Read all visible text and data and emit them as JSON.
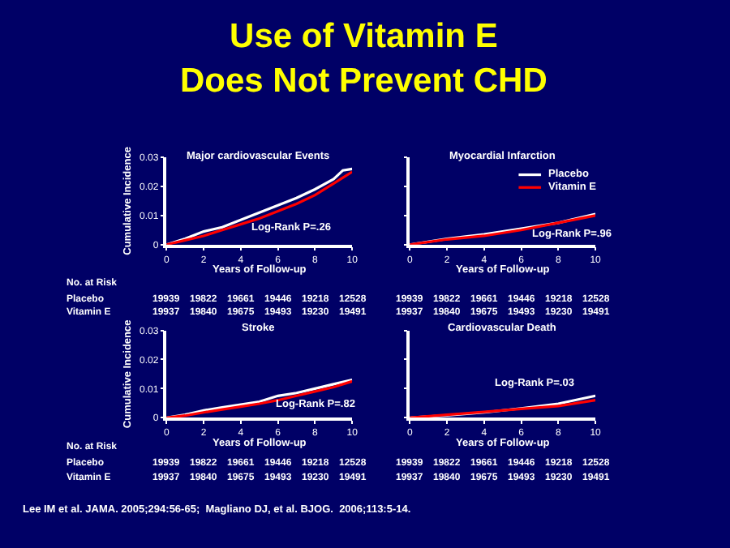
{
  "chart_data": [
    {
      "type": "other",
      "title": "Use of Vitamin E\nDoes Not Prevent CHD",
      "annotations": [
        "Lee IM et al. JAMA. 2005;294:56-65;  Magliano DJ, et al. BJOG.  2006;113:5-14."
      ]
    },
    {
      "type": "line",
      "title": "Major cardiovascular Events",
      "xlabel": "Years of Follow-up",
      "ylabel": "Cumulative Incidence",
      "xlim": [
        0,
        10
      ],
      "xticks": [
        0,
        2,
        4,
        6,
        8,
        10
      ],
      "ylim": [
        0,
        0.03
      ],
      "yticks": [
        0,
        0.01,
        0.02,
        0.03
      ],
      "legend": false,
      "marker": "none",
      "series": [
        {
          "color": "#ffffff",
          "x": [
            0,
            1,
            2,
            3,
            4,
            5,
            6,
            7,
            8,
            9,
            9.5,
            10
          ],
          "values": [
            0,
            0.002,
            0.0045,
            0.006,
            0.0085,
            0.011,
            0.0135,
            0.016,
            0.019,
            0.0225,
            0.0255,
            0.026
          ]
        },
        {
          "color": "#ff0000",
          "x": [
            0,
            1,
            2,
            3,
            4,
            5,
            6,
            7,
            8,
            9,
            9.5,
            10
          ],
          "values": [
            0,
            0.0015,
            0.003,
            0.005,
            0.007,
            0.009,
            0.0115,
            0.014,
            0.017,
            0.021,
            0.023,
            0.025
          ]
        }
      ],
      "annotations": [
        "Log-Rank P=.26",
        "No. at Risk",
        "Placebo  19939  19822  19661  19446  19218  12528",
        "Vitamin E  19937  19840  19675  19493  19230  19491"
      ]
    },
    {
      "type": "line",
      "title": "Myocardial Infarction",
      "xlabel": "Years of Follow-up",
      "xlim": [
        0,
        10
      ],
      "xticks": [
        0,
        2,
        4,
        6,
        8,
        10
      ],
      "ylim": [
        0,
        0.03
      ],
      "yticks": [
        0,
        0.01,
        0.02,
        0.03
      ],
      "tick_labels": "x",
      "legend": "top right",
      "marker": "none",
      "series": [
        {
          "name": "Placebo",
          "color": "#ffffff",
          "x": [
            0,
            2,
            4,
            6,
            8,
            10
          ],
          "values": [
            0,
            0.002,
            0.0035,
            0.0055,
            0.0075,
            0.0105
          ]
        },
        {
          "name": "Vitamin E",
          "color": "#ff0000",
          "x": [
            0,
            2,
            4,
            6,
            8,
            10
          ],
          "values": [
            0,
            0.0018,
            0.003,
            0.005,
            0.0075,
            0.01
          ]
        }
      ],
      "annotations": [
        "Log-Rank P=.96",
        "19939  19822  19661  19446  19218  12528",
        "19937  19840  19675  19493  19230  19491"
      ]
    },
    {
      "type": "line",
      "title": "Stroke",
      "xlabel": "Years of Follow-up",
      "ylabel": "Cumulative Incidence",
      "xlim": [
        0,
        10
      ],
      "xticks": [
        0,
        2,
        4,
        6,
        8,
        10
      ],
      "ylim": [
        0,
        0.03
      ],
      "yticks": [
        0,
        0.01,
        0.02,
        0.03
      ],
      "legend": false,
      "marker": "none",
      "series": [
        {
          "color": "#ffffff",
          "x": [
            0,
            1,
            2,
            3,
            4,
            5,
            6,
            7,
            8,
            9,
            10
          ],
          "values": [
            0,
            0.001,
            0.0025,
            0.0035,
            0.0045,
            0.0055,
            0.0075,
            0.0085,
            0.01,
            0.0115,
            0.013
          ]
        },
        {
          "color": "#ff0000",
          "x": [
            0,
            1,
            2,
            3,
            4,
            5,
            6,
            7,
            8,
            9,
            10
          ],
          "values": [
            0,
            0.0007,
            0.0018,
            0.0028,
            0.0038,
            0.0048,
            0.006,
            0.0075,
            0.009,
            0.0105,
            0.0125
          ]
        }
      ],
      "annotations": [
        "Log-Rank P=.82",
        "No. at Risk",
        "Placebo  19939  19822  19661  19446  19218  12528",
        "Vitamin E  19937  19840  19675  19493  19230  19491"
      ]
    },
    {
      "type": "line",
      "title": "Cardiovascular Death",
      "xlabel": "Years of Follow-up",
      "xlim": [
        0,
        10
      ],
      "xticks": [
        0,
        2,
        4,
        6,
        8,
        10
      ],
      "ylim": [
        0,
        0.03
      ],
      "yticks": [
        0,
        0.01,
        0.02,
        0.03
      ],
      "tick_labels": "x",
      "legend": false,
      "marker": "none",
      "series": [
        {
          "color": "#ffffff",
          "x": [
            0,
            2,
            4,
            6,
            8,
            10
          ],
          "values": [
            0,
            0.0008,
            0.0018,
            0.0032,
            0.0048,
            0.0075
          ]
        },
        {
          "color": "#ff0000",
          "x": [
            0,
            2,
            4,
            6,
            8,
            10
          ],
          "values": [
            0,
            0.001,
            0.002,
            0.003,
            0.004,
            0.006
          ]
        }
      ],
      "annotations": [
        "Log-Rank P=.03",
        "19939  19822  19661  19446  19218  12528",
        "19937  19840  19675  19493  19230  19491"
      ]
    }
  ]
}
